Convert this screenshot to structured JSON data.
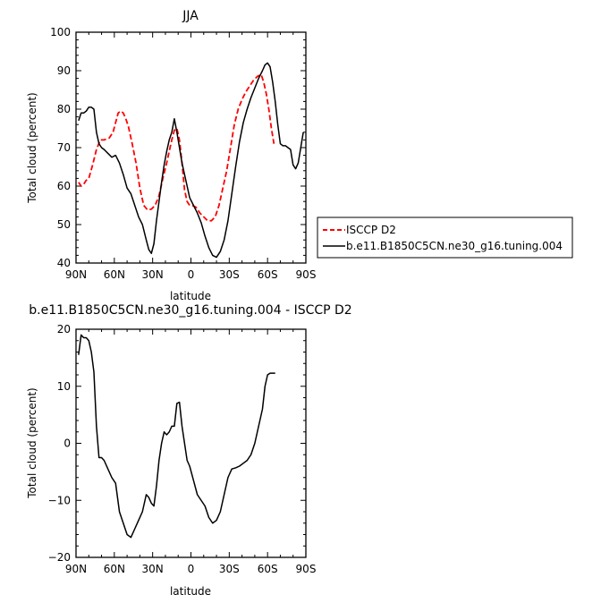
{
  "chart_data": [
    {
      "type": "line",
      "title": "JJA",
      "xlabel": "latitude",
      "ylabel": "Total cloud (percent)",
      "xlim": [
        90,
        -90
      ],
      "ylim": [
        40,
        100
      ],
      "x_ticks": [
        90,
        60,
        30,
        0,
        -30,
        -60,
        -90
      ],
      "x_tick_labels": [
        "90N",
        "60N",
        "30N",
        "0",
        "30S",
        "60S",
        "90S"
      ],
      "y_ticks": [
        40,
        50,
        60,
        70,
        80,
        90,
        100
      ],
      "y_tick_labels": [
        "40",
        "50",
        "60",
        "70",
        "80",
        "90",
        "100"
      ],
      "grid": false,
      "legend_position": "right, outside plot",
      "series": [
        {
          "name": "ISCCP D2",
          "color": "#ff0000",
          "style": "dashed",
          "x": [
            88,
            86,
            84,
            82,
            80,
            77,
            74,
            71,
            68,
            64,
            61,
            59,
            57,
            55,
            53,
            51,
            49,
            46,
            43,
            40,
            37,
            34,
            31,
            28,
            25,
            22,
            19,
            17,
            15,
            13,
            11,
            9,
            7,
            5,
            3,
            1,
            -1,
            -4,
            -7,
            -10,
            -13,
            -16,
            -19,
            -22,
            -25,
            -28,
            -31,
            -34,
            -37,
            -40,
            -43,
            -46,
            -49,
            -52,
            -55,
            -57,
            -59,
            -61,
            -63,
            -65
          ],
          "y": [
            61,
            60,
            60.5,
            61.5,
            62,
            65.5,
            69.5,
            72,
            72,
            72.5,
            74,
            76.5,
            79,
            79.5,
            79,
            77.5,
            75.5,
            71,
            66,
            59.5,
            55,
            53.8,
            54,
            55,
            57.5,
            62,
            66,
            69,
            72,
            74.5,
            75,
            72,
            66,
            59,
            56,
            55,
            55,
            54.5,
            53,
            52,
            51,
            51,
            52,
            55,
            59.5,
            64,
            70,
            76,
            80,
            82.5,
            84.5,
            86,
            87.5,
            88.5,
            89,
            87,
            84,
            80,
            75,
            71
          ]
        },
        {
          "name": "b.e11.B1850C5CN.ne30_g16.tuning.004",
          "color": "#000000",
          "style": "solid",
          "x": [
            88,
            86,
            84,
            82,
            80,
            78,
            76,
            74,
            72,
            70,
            68,
            65,
            62,
            59,
            56,
            53,
            50,
            47,
            44,
            41,
            38,
            35,
            33,
            31,
            29,
            27,
            25,
            23,
            21,
            19,
            17,
            15,
            13,
            11,
            9,
            7,
            5,
            3,
            1,
            -2,
            -5,
            -8,
            -11,
            -14,
            -17,
            -20,
            -23,
            -26,
            -29,
            -32,
            -35,
            -38,
            -41,
            -44,
            -47,
            -50,
            -53,
            -56,
            -58,
            -60,
            -62,
            -64,
            -66,
            -68,
            -70,
            -72,
            -74,
            -76,
            -78,
            -80,
            -82,
            -84,
            -86,
            -88
          ],
          "y": [
            77,
            79,
            79,
            79.5,
            80.5,
            80.5,
            80,
            74,
            71,
            70,
            69.5,
            68.5,
            67.5,
            68,
            66,
            63,
            59.5,
            58,
            55,
            52,
            50,
            46,
            43.5,
            42.5,
            45,
            51,
            56,
            61,
            65.5,
            69,
            72,
            74,
            77.5,
            74,
            70,
            66,
            63,
            60,
            57,
            55,
            53,
            50.5,
            47,
            44,
            42,
            41.5,
            43,
            46,
            51,
            58,
            65,
            71.5,
            76.5,
            80,
            83,
            85.5,
            88,
            90,
            91.5,
            92,
            91,
            87,
            82,
            76,
            71,
            70.5,
            70.5,
            70,
            69.5,
            65.5,
            64.5,
            66,
            70,
            74
          ]
        }
      ]
    },
    {
      "type": "line",
      "title": "b.e11.B1850C5CN.ne30_g16.tuning.004 - ISCCP D2",
      "xlabel": "latitude",
      "ylabel": "Total cloud (percent)",
      "xlim": [
        90,
        -90
      ],
      "ylim": [
        -20,
        20
      ],
      "x_ticks": [
        90,
        60,
        30,
        0,
        -30,
        -60,
        -90
      ],
      "x_tick_labels": [
        "90N",
        "60N",
        "30N",
        "0",
        "30S",
        "60S",
        "90S"
      ],
      "y_ticks": [
        -20,
        -10,
        0,
        10,
        20
      ],
      "y_tick_labels": [
        "−20",
        "−10",
        "0",
        "10",
        "20"
      ],
      "grid": false,
      "series": [
        {
          "color": "#000000",
          "style": "solid",
          "x": [
            88,
            86,
            84,
            82,
            80,
            78,
            76,
            74,
            72,
            70,
            68,
            65,
            62,
            59,
            56,
            53,
            50,
            47,
            44,
            41,
            38,
            35,
            33,
            31,
            29,
            27,
            25,
            23,
            21,
            19,
            17,
            15,
            13,
            11,
            9,
            7,
            5,
            3,
            1,
            -2,
            -5,
            -8,
            -11,
            -14,
            -17,
            -20,
            -23,
            -26,
            -29,
            -32,
            -35,
            -38,
            -41,
            -44,
            -47,
            -50,
            -53,
            -56,
            -58,
            -60,
            -62,
            -64,
            -66
          ],
          "y": [
            15.5,
            19,
            18.5,
            18.5,
            18,
            16,
            12.5,
            3,
            -2.5,
            -2.5,
            -3,
            -4.5,
            -6,
            -7,
            -12,
            -14,
            -16,
            -16.5,
            -15,
            -13.5,
            -12,
            -9,
            -9.5,
            -10.5,
            -11,
            -7.5,
            -3,
            0,
            2,
            1.5,
            2,
            3,
            3,
            7,
            7.2,
            3,
            0,
            -3,
            -4,
            -6.5,
            -9,
            -10,
            -11,
            -13,
            -14,
            -13.5,
            -12,
            -9,
            -6,
            -4.5,
            -4.3,
            -4,
            -3.5,
            -3,
            -2,
            0,
            3,
            6,
            10,
            12,
            12.3,
            12.3,
            12.3
          ]
        }
      ]
    }
  ]
}
